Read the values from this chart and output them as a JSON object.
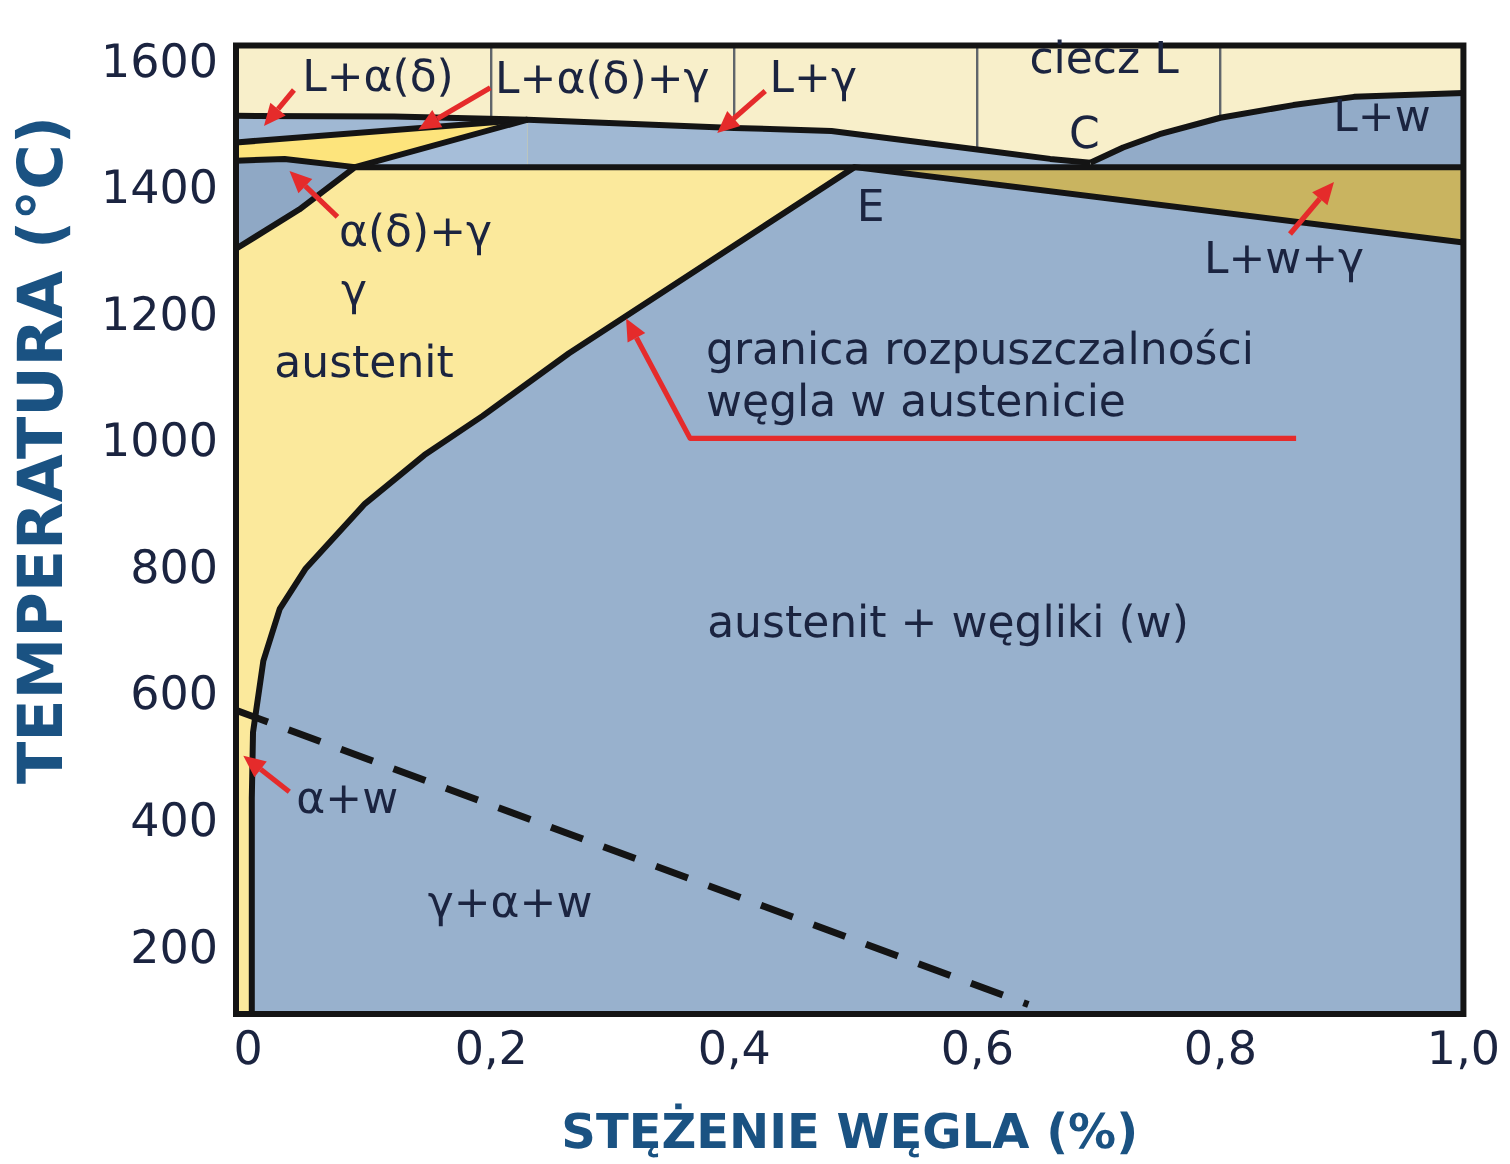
{
  "chart_data": {
    "type": "area",
    "xlabel": "STĘŻENIE WĘGLA (%)",
    "ylabel": "TEMPERATURA (°C)",
    "xlim": [
      -0.01,
      1.0
    ],
    "ylim": [
      100,
      1630
    ],
    "xticks": [
      0,
      {
        "value": 0.2,
        "label": "0,2"
      },
      {
        "value": 0.4,
        "label": "0,4"
      },
      {
        "value": 0.6,
        "label": "0,6"
      },
      {
        "value": 0.8,
        "label": "0,8"
      },
      {
        "value": 1,
        "label": "1,0"
      }
    ],
    "yticks": [
      200,
      400,
      600,
      800,
      1000,
      1200,
      1400,
      1600
    ],
    "grid": true,
    "series": [
      {
        "color": "#a0b8d3",
        "x": [
          -0.01,
          0.12,
          0.23,
          0.4,
          0.48,
          0.6,
          0.66,
          0.693
        ],
        "values": [
          1519,
          1518,
          1513,
          1500,
          1495,
          1466,
          1451,
          1445
        ]
      },
      {
        "color": "#92abc8",
        "x": [
          0.693,
          0.72,
          0.75,
          0.8,
          0.86,
          0.91,
          1.0
        ],
        "values": [
          1445,
          1469,
          1490,
          1516,
          1536,
          1549,
          1555
        ]
      },
      {
        "color": "#fde47c",
        "x": [
          -0.01,
          0.23
        ],
        "values": [
          1477,
          1513
        ]
      },
      {
        "color": "#8fa8c5",
        "x": [
          -0.01,
          0.03,
          0.088
        ],
        "values": [
          1448,
          1451,
          1438
        ]
      },
      {
        "color": "#a6bed9",
        "x": [
          0.088,
          0.23
        ],
        "values": [
          1438,
          1513
        ]
      },
      {
        "color": "#fbe99c",
        "x": [
          -0.01,
          0.042,
          0.088,
          0.499
        ],
        "values": [
          1309,
          1371,
          1438,
          1438
        ]
      },
      {
        "color": "#c9b460",
        "x": [
          0.499,
          1.0
        ],
        "values": [
          1438,
          1438
        ]
      },
      {
        "color": "#98b1cd",
        "x": [
          0.003,
          0.003,
          0.004,
          0.007,
          0.0125,
          0.026,
          0.047,
          0.096,
          0.145,
          0.193,
          0.264,
          0.499,
          1.0
        ],
        "values": [
          100,
          441,
          545,
          585,
          658,
          740,
          803,
          906,
          983,
          1045,
          1144,
          1438,
          1319
        ]
      },
      {
        "type": "line",
        "line_style": "dashed",
        "color": "#141414",
        "x": [
          -0.01,
          0.642
        ],
        "values": [
          580,
          115
        ]
      }
    ],
    "annotations": [
      {
        "text": "L+α(δ)",
        "x": 0.013,
        "y": 1503
      },
      {
        "text": "L+α(δ)+γ",
        "x": 0.14,
        "y": 1497
      },
      {
        "text": "L+γ",
        "x": 0.386,
        "y": 1492
      },
      "ciecz L",
      {
        "text": "C",
        "x": 0.693,
        "y": 1445
      },
      "L+w",
      {
        "text": "E",
        "x": 0.499,
        "y": 1438
      },
      "L+w+γ",
      {
        "text": "α(δ)+γ",
        "x": 0.034,
        "y": 1432
      },
      "γ",
      "austenit",
      {
        "text": "granica rozpuszczalności\nwęgla w austenicie",
        "x": 0.311,
        "y": 1199
      },
      "austenit + węgliki (w)",
      {
        "text": "α+w",
        "x": -0.004,
        "y": 508
      },
      "γ+α+w"
    ]
  }
}
